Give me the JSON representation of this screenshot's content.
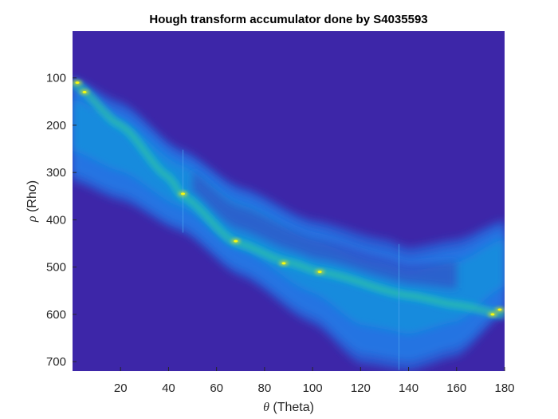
{
  "chart_data": {
    "type": "heatmap",
    "title": "Hough transform accumulator done by S4035593",
    "xlabel_symbol": "θ",
    "xlabel_text": " (Theta)",
    "ylabel_symbol": "ρ",
    "ylabel_text": " (Rho)",
    "xlim": [
      0,
      180
    ],
    "ylim": [
      1,
      720
    ],
    "y_reversed": true,
    "xticks": [
      20,
      40,
      60,
      80,
      100,
      120,
      140,
      160,
      180
    ],
    "yticks": [
      100,
      200,
      300,
      400,
      500,
      600,
      700
    ],
    "colormap": "parula",
    "background_color": "#3d26a8",
    "band": {
      "upper_edge": [
        [
          0,
          100
        ],
        [
          20,
          150
        ],
        [
          45,
          250
        ],
        [
          70,
          330
        ],
        [
          100,
          400
        ],
        [
          130,
          440
        ],
        [
          140,
          458
        ],
        [
          160,
          440
        ],
        [
          180,
          400
        ]
      ],
      "lower_edge": [
        [
          0,
          320
        ],
        [
          20,
          360
        ],
        [
          45,
          425
        ],
        [
          70,
          520
        ],
        [
          100,
          620
        ],
        [
          120,
          705
        ],
        [
          140,
          720
        ],
        [
          160,
          690
        ],
        [
          180,
          600
        ]
      ],
      "ridge": [
        [
          0,
          110
        ],
        [
          20,
          200
        ],
        [
          40,
          310
        ],
        [
          46,
          350
        ],
        [
          68,
          448
        ],
        [
          90,
          490
        ],
        [
          103,
          510
        ],
        [
          140,
          560
        ],
        [
          160,
          580
        ],
        [
          180,
          600
        ]
      ]
    },
    "hotspots": [
      [
        2,
        110
      ],
      [
        5,
        130
      ],
      [
        46,
        345
      ],
      [
        68,
        445
      ],
      [
        88,
        492
      ],
      [
        103,
        510
      ],
      [
        175,
        600
      ],
      [
        178,
        590
      ]
    ]
  }
}
